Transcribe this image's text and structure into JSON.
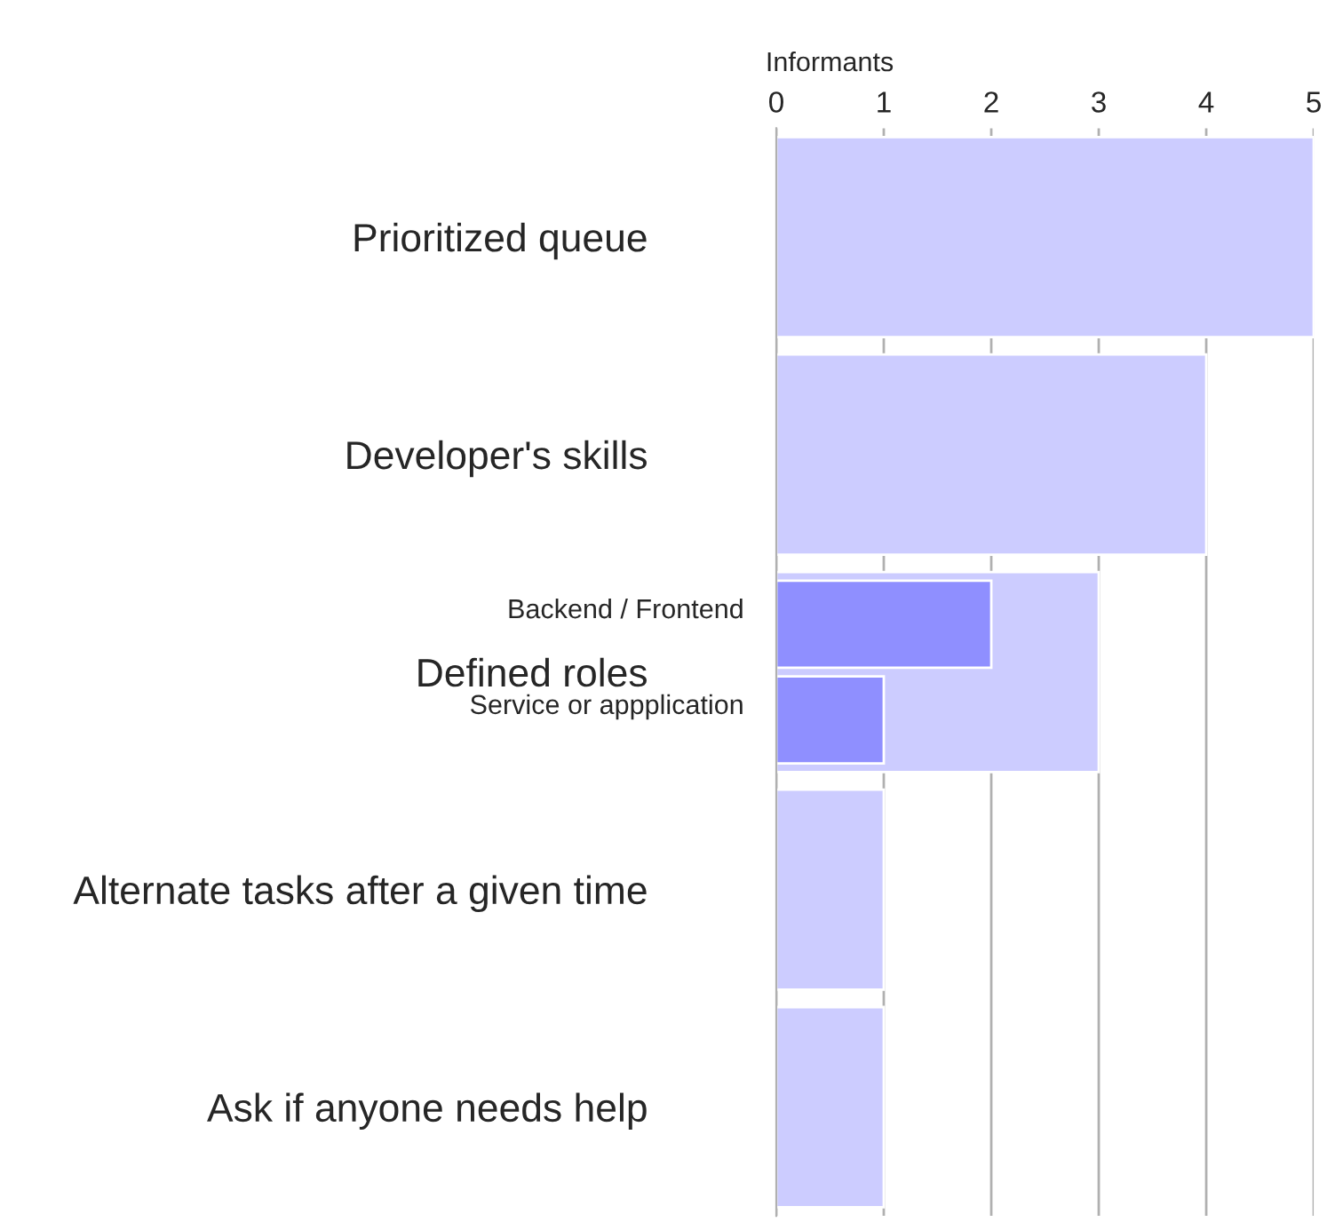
{
  "chart_data": {
    "type": "bar",
    "orientation": "horizontal",
    "xlabel": "Informants",
    "categories": [
      "Prioritized queue",
      "Developer's skills",
      "Defined roles",
      "Alternate tasks after a given time",
      "Ask if anyone needs help"
    ],
    "series": [
      {
        "color": "#ccccff",
        "values": [
          5,
          4,
          3,
          1,
          1
        ]
      },
      {
        "name": "Backend / Frontend",
        "color": "#8f8fff",
        "values": [
          null,
          null,
          2,
          null,
          null
        ]
      },
      {
        "name": "Service or appplication",
        "color": "#8f8fff",
        "values": [
          null,
          null,
          1,
          null,
          null
        ]
      }
    ],
    "xlim": [
      0,
      5
    ],
    "xticks": [
      0,
      1,
      2,
      3,
      4,
      5
    ],
    "grid": "x",
    "legend": false
  }
}
